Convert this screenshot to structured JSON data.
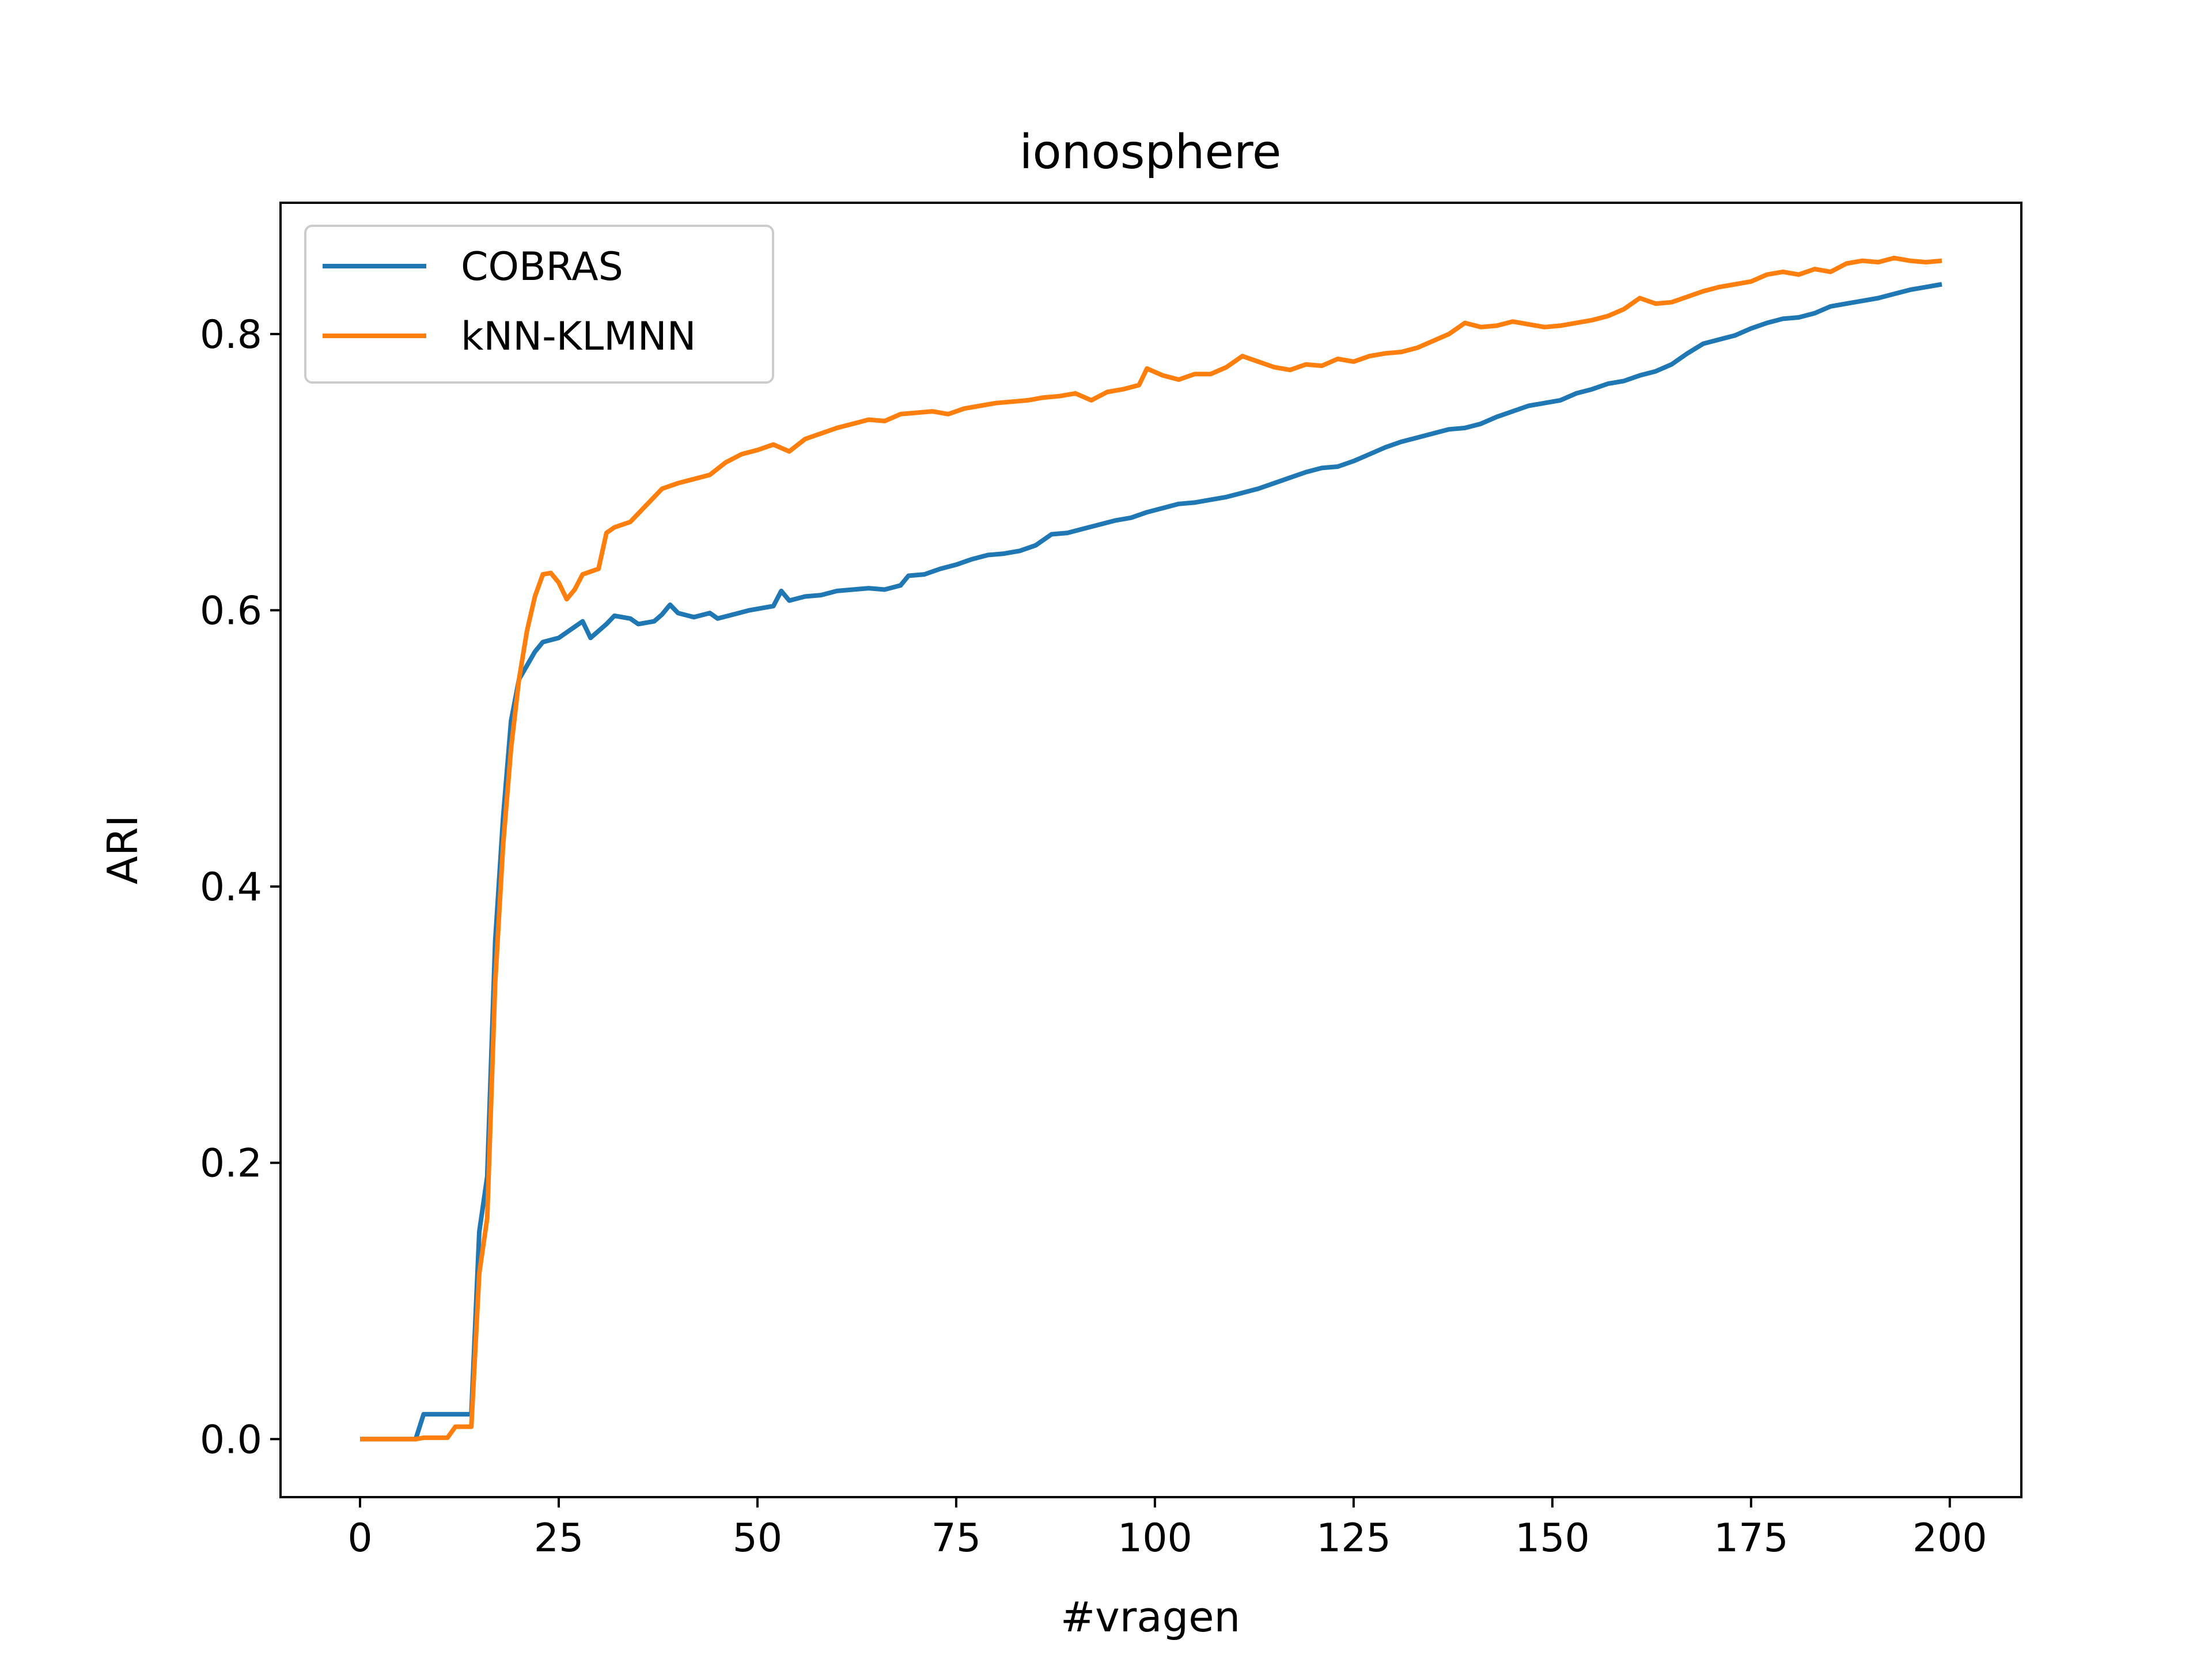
{
  "chart_data": {
    "type": "line",
    "title": "ionosphere",
    "xlabel": "#vragen",
    "ylabel": "ARI",
    "xlim": [
      -10,
      209
    ],
    "ylim": [
      -0.042,
      0.895
    ],
    "xticks": [
      "0",
      "25",
      "50",
      "75",
      "100",
      "125",
      "150",
      "175",
      "200"
    ],
    "yticks": [
      "0.0",
      "0.2",
      "0.4",
      "0.6",
      "0.8"
    ],
    "grid": false,
    "legend_position": "top-left",
    "series": [
      {
        "name": "COBRAS",
        "color": "#1f77b4",
        "points": [
          [
            0,
            0.0
          ],
          [
            7,
            0.0
          ],
          [
            8,
            0.018
          ],
          [
            14,
            0.018
          ],
          [
            15,
            0.15
          ],
          [
            16,
            0.19
          ],
          [
            17,
            0.36
          ],
          [
            18,
            0.45
          ],
          [
            19,
            0.52
          ],
          [
            20,
            0.55
          ],
          [
            22,
            0.57
          ],
          [
            23,
            0.577
          ],
          [
            25,
            0.58
          ],
          [
            27,
            0.588
          ],
          [
            28,
            0.592
          ],
          [
            29,
            0.58
          ],
          [
            31,
            0.59
          ],
          [
            32,
            0.596
          ],
          [
            34,
            0.594
          ],
          [
            35,
            0.59
          ],
          [
            37,
            0.592
          ],
          [
            38,
            0.597
          ],
          [
            39,
            0.604
          ],
          [
            40,
            0.598
          ],
          [
            42,
            0.595
          ],
          [
            44,
            0.598
          ],
          [
            45,
            0.594
          ],
          [
            47,
            0.597
          ],
          [
            49,
            0.6
          ],
          [
            51,
            0.602
          ],
          [
            52,
            0.603
          ],
          [
            53,
            0.614
          ],
          [
            54,
            0.607
          ],
          [
            56,
            0.61
          ],
          [
            58,
            0.611
          ],
          [
            60,
            0.614
          ],
          [
            62,
            0.615
          ],
          [
            64,
            0.616
          ],
          [
            66,
            0.615
          ],
          [
            68,
            0.618
          ],
          [
            69,
            0.625
          ],
          [
            71,
            0.626
          ],
          [
            73,
            0.63
          ],
          [
            75,
            0.633
          ],
          [
            77,
            0.637
          ],
          [
            79,
            0.64
          ],
          [
            81,
            0.641
          ],
          [
            83,
            0.643
          ],
          [
            85,
            0.647
          ],
          [
            87,
            0.655
          ],
          [
            89,
            0.656
          ],
          [
            91,
            0.659
          ],
          [
            93,
            0.662
          ],
          [
            95,
            0.665
          ],
          [
            97,
            0.667
          ],
          [
            99,
            0.671
          ],
          [
            101,
            0.674
          ],
          [
            103,
            0.677
          ],
          [
            105,
            0.678
          ],
          [
            107,
            0.68
          ],
          [
            109,
            0.682
          ],
          [
            111,
            0.685
          ],
          [
            113,
            0.688
          ],
          [
            115,
            0.692
          ],
          [
            117,
            0.696
          ],
          [
            119,
            0.7
          ],
          [
            121,
            0.703
          ],
          [
            123,
            0.704
          ],
          [
            125,
            0.708
          ],
          [
            127,
            0.713
          ],
          [
            129,
            0.718
          ],
          [
            131,
            0.722
          ],
          [
            133,
            0.725
          ],
          [
            135,
            0.728
          ],
          [
            137,
            0.731
          ],
          [
            139,
            0.732
          ],
          [
            141,
            0.735
          ],
          [
            143,
            0.74
          ],
          [
            145,
            0.744
          ],
          [
            147,
            0.748
          ],
          [
            149,
            0.75
          ],
          [
            151,
            0.752
          ],
          [
            153,
            0.757
          ],
          [
            155,
            0.76
          ],
          [
            157,
            0.764
          ],
          [
            159,
            0.766
          ],
          [
            161,
            0.77
          ],
          [
            163,
            0.773
          ],
          [
            165,
            0.778
          ],
          [
            167,
            0.786
          ],
          [
            169,
            0.793
          ],
          [
            171,
            0.796
          ],
          [
            173,
            0.799
          ],
          [
            175,
            0.804
          ],
          [
            177,
            0.808
          ],
          [
            179,
            0.811
          ],
          [
            181,
            0.812
          ],
          [
            183,
            0.815
          ],
          [
            185,
            0.82
          ],
          [
            187,
            0.822
          ],
          [
            189,
            0.824
          ],
          [
            191,
            0.826
          ],
          [
            193,
            0.829
          ],
          [
            195,
            0.832
          ],
          [
            197,
            0.834
          ],
          [
            199,
            0.836
          ]
        ]
      },
      {
        "name": "kNN-KLMNN",
        "color": "#ff7f0e",
        "points": [
          [
            0,
            0.0
          ],
          [
            7,
            0.0
          ],
          [
            8,
            0.001
          ],
          [
            11,
            0.001
          ],
          [
            12,
            0.009
          ],
          [
            14,
            0.009
          ],
          [
            15,
            0.12
          ],
          [
            16,
            0.16
          ],
          [
            17,
            0.33
          ],
          [
            18,
            0.43
          ],
          [
            19,
            0.5
          ],
          [
            20,
            0.55
          ],
          [
            21,
            0.585
          ],
          [
            22,
            0.61
          ],
          [
            23,
            0.626
          ],
          [
            24,
            0.627
          ],
          [
            25,
            0.62
          ],
          [
            26,
            0.608
          ],
          [
            27,
            0.615
          ],
          [
            28,
            0.626
          ],
          [
            29,
            0.628
          ],
          [
            30,
            0.63
          ],
          [
            31,
            0.656
          ],
          [
            32,
            0.66
          ],
          [
            34,
            0.664
          ],
          [
            36,
            0.676
          ],
          [
            38,
            0.688
          ],
          [
            40,
            0.692
          ],
          [
            42,
            0.695
          ],
          [
            44,
            0.698
          ],
          [
            46,
            0.707
          ],
          [
            48,
            0.713
          ],
          [
            50,
            0.716
          ],
          [
            52,
            0.72
          ],
          [
            54,
            0.715
          ],
          [
            56,
            0.724
          ],
          [
            58,
            0.728
          ],
          [
            60,
            0.732
          ],
          [
            62,
            0.735
          ],
          [
            64,
            0.738
          ],
          [
            66,
            0.737
          ],
          [
            68,
            0.742
          ],
          [
            70,
            0.743
          ],
          [
            72,
            0.744
          ],
          [
            74,
            0.742
          ],
          [
            76,
            0.746
          ],
          [
            78,
            0.748
          ],
          [
            80,
            0.75
          ],
          [
            82,
            0.751
          ],
          [
            84,
            0.752
          ],
          [
            86,
            0.754
          ],
          [
            88,
            0.755
          ],
          [
            90,
            0.757
          ],
          [
            92,
            0.752
          ],
          [
            94,
            0.758
          ],
          [
            96,
            0.76
          ],
          [
            98,
            0.763
          ],
          [
            99,
            0.775
          ],
          [
            101,
            0.77
          ],
          [
            103,
            0.767
          ],
          [
            105,
            0.771
          ],
          [
            107,
            0.771
          ],
          [
            109,
            0.776
          ],
          [
            111,
            0.784
          ],
          [
            113,
            0.78
          ],
          [
            115,
            0.776
          ],
          [
            117,
            0.774
          ],
          [
            119,
            0.778
          ],
          [
            121,
            0.777
          ],
          [
            123,
            0.782
          ],
          [
            125,
            0.78
          ],
          [
            127,
            0.784
          ],
          [
            129,
            0.786
          ],
          [
            131,
            0.787
          ],
          [
            133,
            0.79
          ],
          [
            135,
            0.795
          ],
          [
            137,
            0.8
          ],
          [
            139,
            0.808
          ],
          [
            141,
            0.805
          ],
          [
            143,
            0.806
          ],
          [
            145,
            0.809
          ],
          [
            147,
            0.807
          ],
          [
            149,
            0.805
          ],
          [
            151,
            0.806
          ],
          [
            153,
            0.808
          ],
          [
            155,
            0.81
          ],
          [
            157,
            0.813
          ],
          [
            159,
            0.818
          ],
          [
            161,
            0.826
          ],
          [
            163,
            0.822
          ],
          [
            165,
            0.823
          ],
          [
            167,
            0.827
          ],
          [
            169,
            0.831
          ],
          [
            171,
            0.834
          ],
          [
            173,
            0.836
          ],
          [
            175,
            0.838
          ],
          [
            177,
            0.843
          ],
          [
            179,
            0.845
          ],
          [
            181,
            0.843
          ],
          [
            183,
            0.847
          ],
          [
            185,
            0.845
          ],
          [
            187,
            0.851
          ],
          [
            189,
            0.853
          ],
          [
            191,
            0.852
          ],
          [
            193,
            0.855
          ],
          [
            195,
            0.853
          ],
          [
            197,
            0.852
          ],
          [
            199,
            0.853
          ]
        ]
      }
    ]
  }
}
